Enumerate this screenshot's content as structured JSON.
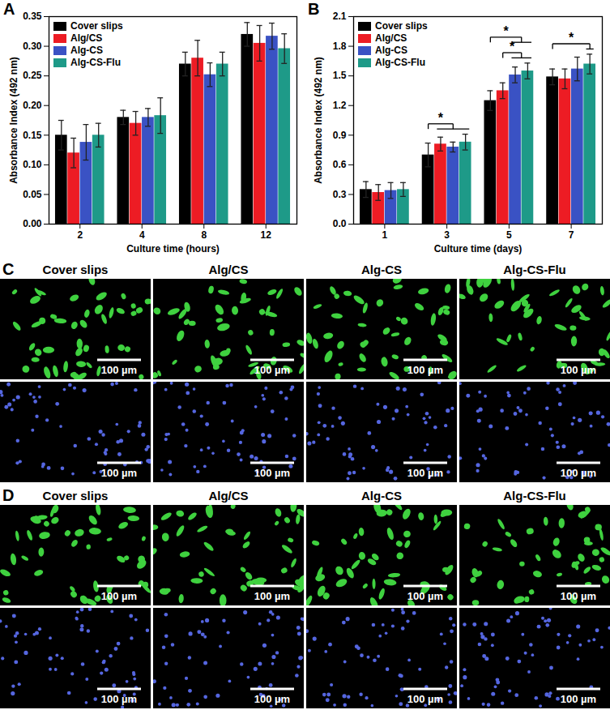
{
  "chart_data": [
    {
      "type": "bar",
      "panel": "A",
      "xlabel": "Culture time (hours)",
      "ylabel": "Absorbance Index (492 nm)",
      "categories": [
        "2",
        "4",
        "8",
        "12"
      ],
      "series": [
        {
          "name": "Cover slips",
          "color": "#000000",
          "values": [
            0.15,
            0.18,
            0.27,
            0.32
          ],
          "errors": [
            0.025,
            0.012,
            0.02,
            0.02
          ]
        },
        {
          "name": "Alg/CS",
          "color": "#ed1c24",
          "values": [
            0.12,
            0.17,
            0.28,
            0.305
          ],
          "errors": [
            0.025,
            0.02,
            0.03,
            0.03
          ]
        },
        {
          "name": "Alg-CS",
          "color": "#3a52c4",
          "values": [
            0.138,
            0.18,
            0.252,
            0.317
          ],
          "errors": [
            0.03,
            0.015,
            0.02,
            0.022
          ]
        },
        {
          "name": "Alg-CS-Flu",
          "color": "#1e9a88",
          "values": [
            0.15,
            0.183,
            0.27,
            0.296
          ],
          "errors": [
            0.02,
            0.03,
            0.02,
            0.025
          ]
        }
      ],
      "ylim": [
        0,
        0.35
      ],
      "yticks": [
        {
          "value": 0,
          "label": "0.00"
        },
        {
          "value": 0.05,
          "label": "0.05"
        },
        {
          "value": 0.1,
          "label": "0.10"
        },
        {
          "value": 0.15,
          "label": "0.15"
        },
        {
          "value": 0.2,
          "label": "0.20"
        },
        {
          "value": 0.25,
          "label": "0.25"
        },
        {
          "value": 0.3,
          "label": "0.30"
        },
        {
          "value": 0.35,
          "label": "0.35"
        }
      ],
      "grid": false,
      "legend": "upper left"
    },
    {
      "type": "bar",
      "panel": "B",
      "xlabel": "Culture time (days)",
      "ylabel": "Absorbance Index (492 nm)",
      "categories": [
        "1",
        "3",
        "5",
        "7"
      ],
      "series": [
        {
          "name": "Cover slips",
          "color": "#000000",
          "values": [
            0.35,
            0.7,
            1.25,
            1.49
          ],
          "errors": [
            0.08,
            0.12,
            0.1,
            0.08
          ]
        },
        {
          "name": "Alg/CS",
          "color": "#ed1c24",
          "values": [
            0.32,
            0.81,
            1.35,
            1.47
          ],
          "errors": [
            0.08,
            0.07,
            0.08,
            0.1
          ]
        },
        {
          "name": "Alg-CS",
          "color": "#3a52c4",
          "values": [
            0.34,
            0.78,
            1.51,
            1.57
          ],
          "errors": [
            0.08,
            0.05,
            0.08,
            0.12
          ]
        },
        {
          "name": "Alg-CS-Flu",
          "color": "#1e9a88",
          "values": [
            0.35,
            0.83,
            1.55,
            1.62
          ],
          "errors": [
            0.07,
            0.08,
            0.08,
            0.1
          ]
        }
      ],
      "ylim": [
        0,
        2.1
      ],
      "yticks": [
        {
          "value": 0,
          "label": "0.0"
        },
        {
          "value": 0.3,
          "label": "0.3"
        },
        {
          "value": 0.6,
          "label": "0.6"
        },
        {
          "value": 0.9,
          "label": "0.9"
        },
        {
          "value": 1.2,
          "label": "1.2"
        },
        {
          "value": 1.5,
          "label": "1.5"
        },
        {
          "value": 1.8,
          "label": "1.8"
        },
        {
          "value": 2.1,
          "label": "2.1"
        }
      ],
      "significance": [
        {
          "category": "3",
          "from": "Cover slips",
          "to": [
            "Alg/CS",
            "Alg-CS",
            "Alg-CS-Flu"
          ],
          "label": "*"
        },
        {
          "category": "5",
          "from": "Alg/CS",
          "to": [
            "Alg-CS",
            "Alg-CS-Flu"
          ],
          "label": "*"
        },
        {
          "category": "5",
          "from": "Cover slips",
          "to": [
            "Alg-CS",
            "Alg-CS-Flu"
          ],
          "label": "*"
        },
        {
          "category": "7",
          "from": "Cover slips",
          "to": [
            "Alg-CS-Flu"
          ],
          "label": "*"
        }
      ],
      "grid": false,
      "legend": "upper left"
    }
  ],
  "image_panels": [
    {
      "panel": "C",
      "columns": [
        "Cover slips",
        "Alg/CS",
        "Alg-CS",
        "Alg-CS-Flu"
      ],
      "scale_bar": "100 µm"
    },
    {
      "panel": "D",
      "columns": [
        "Cover slips",
        "Alg/CS",
        "Alg-CS",
        "Alg-CS-Flu"
      ],
      "scale_bar": "100 µm"
    }
  ]
}
